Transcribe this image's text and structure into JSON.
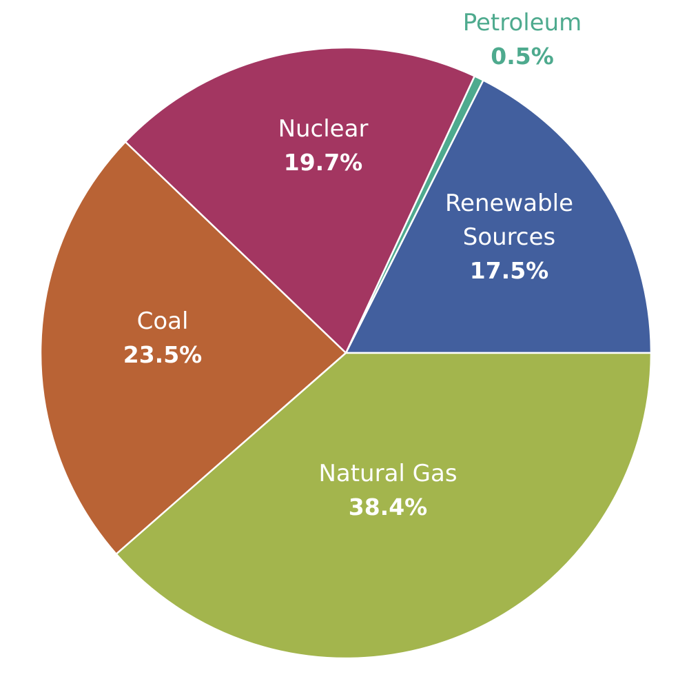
{
  "chart_data": {
    "type": "pie",
    "slices": [
      {
        "label": [
          "Renewable",
          "Sources"
        ],
        "value": 17.5,
        "value_text": "17.5%",
        "color": "#425f9e",
        "text_color": "#ffffff"
      },
      {
        "label": [
          "Petroleum"
        ],
        "value": 0.5,
        "value_text": "0.5%",
        "color": "#4eaa8e",
        "text_color": "#4eaa8e"
      },
      {
        "label": [
          "Nuclear"
        ],
        "value": 19.7,
        "value_text": "19.7%",
        "color": "#a33661",
        "text_color": "#ffffff"
      },
      {
        "label": [
          "Coal"
        ],
        "value": 23.5,
        "value_text": "23.5%",
        "color": "#b96335",
        "text_color": "#ffffff"
      },
      {
        "label": [
          "Natural Gas"
        ],
        "value": 38.4,
        "value_text": "38.4%",
        "color": "#a3b54d",
        "text_color": "#ffffff"
      }
    ]
  }
}
